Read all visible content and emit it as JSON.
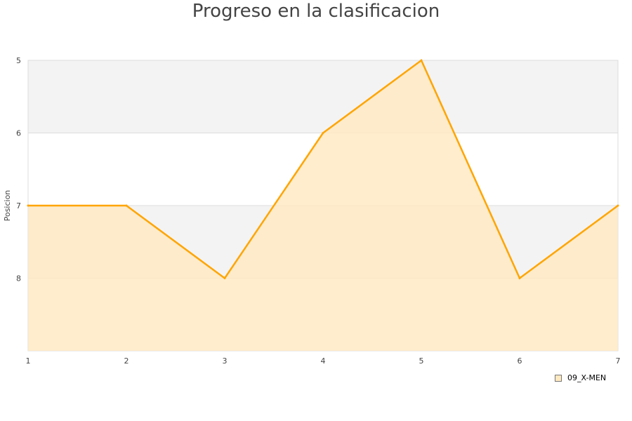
{
  "chart_data": {
    "type": "area",
    "title": "Progreso en la clasificacion",
    "ylabel": "Posicion",
    "xlabel": "",
    "x": [
      1,
      2,
      3,
      4,
      5,
      6,
      7
    ],
    "series": [
      {
        "name": "09_X-MEN",
        "values": [
          7,
          7,
          8,
          6,
          5,
          8,
          7
        ],
        "color": "#ffa500",
        "fill": "#ffe9c0"
      }
    ],
    "xlim": [
      1,
      7
    ],
    "ylim": [
      5,
      9
    ],
    "y_inverted": true,
    "yticks": [
      5,
      6,
      7,
      8
    ],
    "grid": "alternating horizontal bands",
    "band_color": "#f3f3f3",
    "legend": "bottom-right"
  }
}
